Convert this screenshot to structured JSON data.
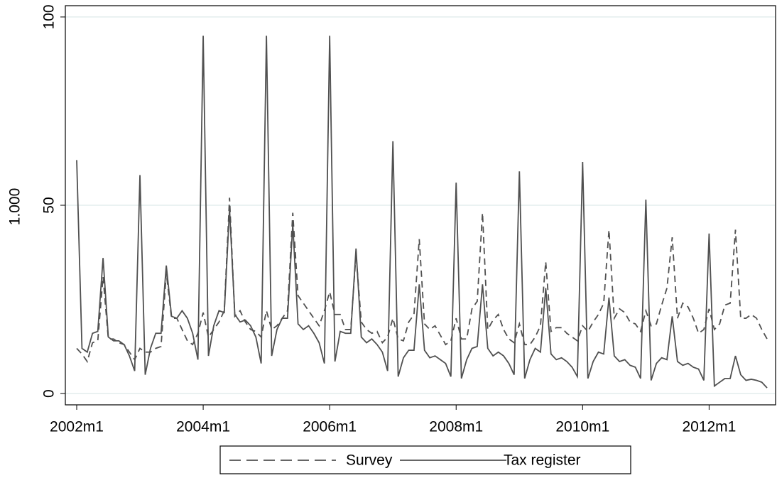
{
  "chart_data": {
    "type": "line",
    "y_label": "1.000",
    "x": [
      "2002m1",
      "2002m2",
      "2002m3",
      "2002m4",
      "2002m5",
      "2002m6",
      "2002m7",
      "2002m8",
      "2002m9",
      "2002m10",
      "2002m11",
      "2002m12",
      "2003m1",
      "2003m2",
      "2003m3",
      "2003m4",
      "2003m5",
      "2003m6",
      "2003m7",
      "2003m8",
      "2003m9",
      "2003m10",
      "2003m11",
      "2003m12",
      "2004m1",
      "2004m2",
      "2004m3",
      "2004m4",
      "2004m5",
      "2004m6",
      "2004m7",
      "2004m8",
      "2004m9",
      "2004m10",
      "2004m11",
      "2004m12",
      "2005m1",
      "2005m2",
      "2005m3",
      "2005m4",
      "2005m5",
      "2005m6",
      "2005m7",
      "2005m8",
      "2005m9",
      "2005m10",
      "2005m11",
      "2005m12",
      "2006m1",
      "2006m2",
      "2006m3",
      "2006m4",
      "2006m5",
      "2006m6",
      "2006m7",
      "2006m8",
      "2006m9",
      "2006m10",
      "2006m11",
      "2006m12",
      "2007m1",
      "2007m2",
      "2007m3",
      "2007m4",
      "2007m5",
      "2007m6",
      "2007m7",
      "2007m8",
      "2007m9",
      "2007m10",
      "2007m11",
      "2007m12",
      "2008m1",
      "2008m2",
      "2008m3",
      "2008m4",
      "2008m5",
      "2008m6",
      "2008m7",
      "2008m8",
      "2008m9",
      "2008m10",
      "2008m11",
      "2008m12",
      "2009m1",
      "2009m2",
      "2009m3",
      "2009m4",
      "2009m5",
      "2009m6",
      "2009m7",
      "2009m8",
      "2009m9",
      "2009m10",
      "2009m11",
      "2009m12",
      "2010m1",
      "2010m2",
      "2010m3",
      "2010m4",
      "2010m5",
      "2010m6",
      "2010m7",
      "2010m8",
      "2010m9",
      "2010m10",
      "2010m11",
      "2010m12",
      "2011m1",
      "2011m2",
      "2011m3",
      "2011m4",
      "2011m5",
      "2011m6",
      "2011m7",
      "2011m8",
      "2011m9",
      "2011m10",
      "2011m11",
      "2011m12",
      "2012m1",
      "2012m2",
      "2012m3",
      "2012m4",
      "2012m5",
      "2012m6",
      "2012m7",
      "2012m8",
      "2012m9",
      "2012m10",
      "2012m11",
      "2012m12"
    ],
    "series": [
      {
        "name": "Survey",
        "color": "#505050",
        "dash": true,
        "values": [
          12,
          10.5,
          8.5,
          13.5,
          14,
          31,
          14.5,
          14.5,
          13.5,
          13,
          11,
          9,
          12,
          11,
          11,
          12,
          12.5,
          32,
          20,
          20,
          17,
          14,
          13,
          16,
          21.5,
          15,
          17,
          19,
          22,
          52,
          20.5,
          22,
          19,
          17,
          16.5,
          15,
          22,
          17,
          18,
          20,
          22,
          48,
          26,
          24,
          22,
          20,
          18,
          22,
          27,
          21,
          21,
          17,
          17,
          37,
          19,
          17,
          16,
          16.5,
          13.5,
          15,
          20,
          14.5,
          14,
          19,
          21,
          41,
          18.5,
          17,
          18,
          15.5,
          13,
          14,
          20,
          14.5,
          14.5,
          22.5,
          24.5,
          48,
          17,
          19.5,
          21,
          17,
          14.5,
          13.5,
          18.5,
          13,
          13,
          15,
          18,
          35,
          16.5,
          17.5,
          17.5,
          16,
          15,
          14,
          18,
          16.5,
          19,
          21,
          24,
          43.5,
          20,
          22.5,
          21.5,
          19,
          18.5,
          16.5,
          22,
          18,
          18.5,
          23.5,
          28,
          41.5,
          20,
          24,
          23,
          20,
          16,
          17,
          22.5,
          17,
          18.5,
          23.5,
          24,
          43.5,
          20,
          20,
          21,
          20,
          17,
          14.5
        ]
      },
      {
        "name": "Tax register",
        "color": "#505050",
        "dash": false,
        "values": [
          62,
          12,
          11,
          16,
          16.5,
          36,
          15,
          14,
          14,
          13,
          10,
          6,
          58,
          5,
          12,
          16,
          16,
          34,
          20.5,
          20,
          22,
          20,
          16,
          9,
          95,
          10,
          18,
          22,
          21.5,
          49,
          21,
          19,
          19.5,
          18,
          15,
          8,
          95,
          10,
          17,
          20,
          20,
          45,
          18.5,
          17,
          18,
          16,
          13.5,
          8,
          95,
          8.5,
          16.5,
          16,
          16,
          38.5,
          15,
          13.5,
          14.5,
          13,
          11,
          6,
          67,
          4.5,
          9.5,
          11.5,
          11.5,
          29,
          11.5,
          9.5,
          10,
          9,
          8,
          4.5,
          56,
          4,
          9,
          12,
          12.5,
          29,
          12,
          10,
          11,
          10,
          8,
          5,
          59,
          4,
          9,
          12,
          11,
          28,
          10.5,
          9,
          9.5,
          8.5,
          7,
          4.5,
          61.5,
          4,
          8.5,
          11,
          10.5,
          25.5,
          10,
          8.5,
          9,
          7.5,
          7,
          4,
          51.5,
          3.5,
          8,
          9.5,
          9,
          20.5,
          8.5,
          7.5,
          8,
          7,
          6.5,
          3.5,
          42.5,
          2,
          3,
          4,
          4,
          10,
          5,
          3.5,
          3.8,
          3.5,
          3,
          1.5
        ]
      }
    ],
    "ylim": [
      -3,
      103
    ],
    "yticks": [
      0,
      50,
      100
    ],
    "xticks": [
      "2002m1",
      "2004m1",
      "2006m1",
      "2008m1",
      "2010m1",
      "2012m1"
    ],
    "grid": true,
    "legend": "bottom"
  }
}
